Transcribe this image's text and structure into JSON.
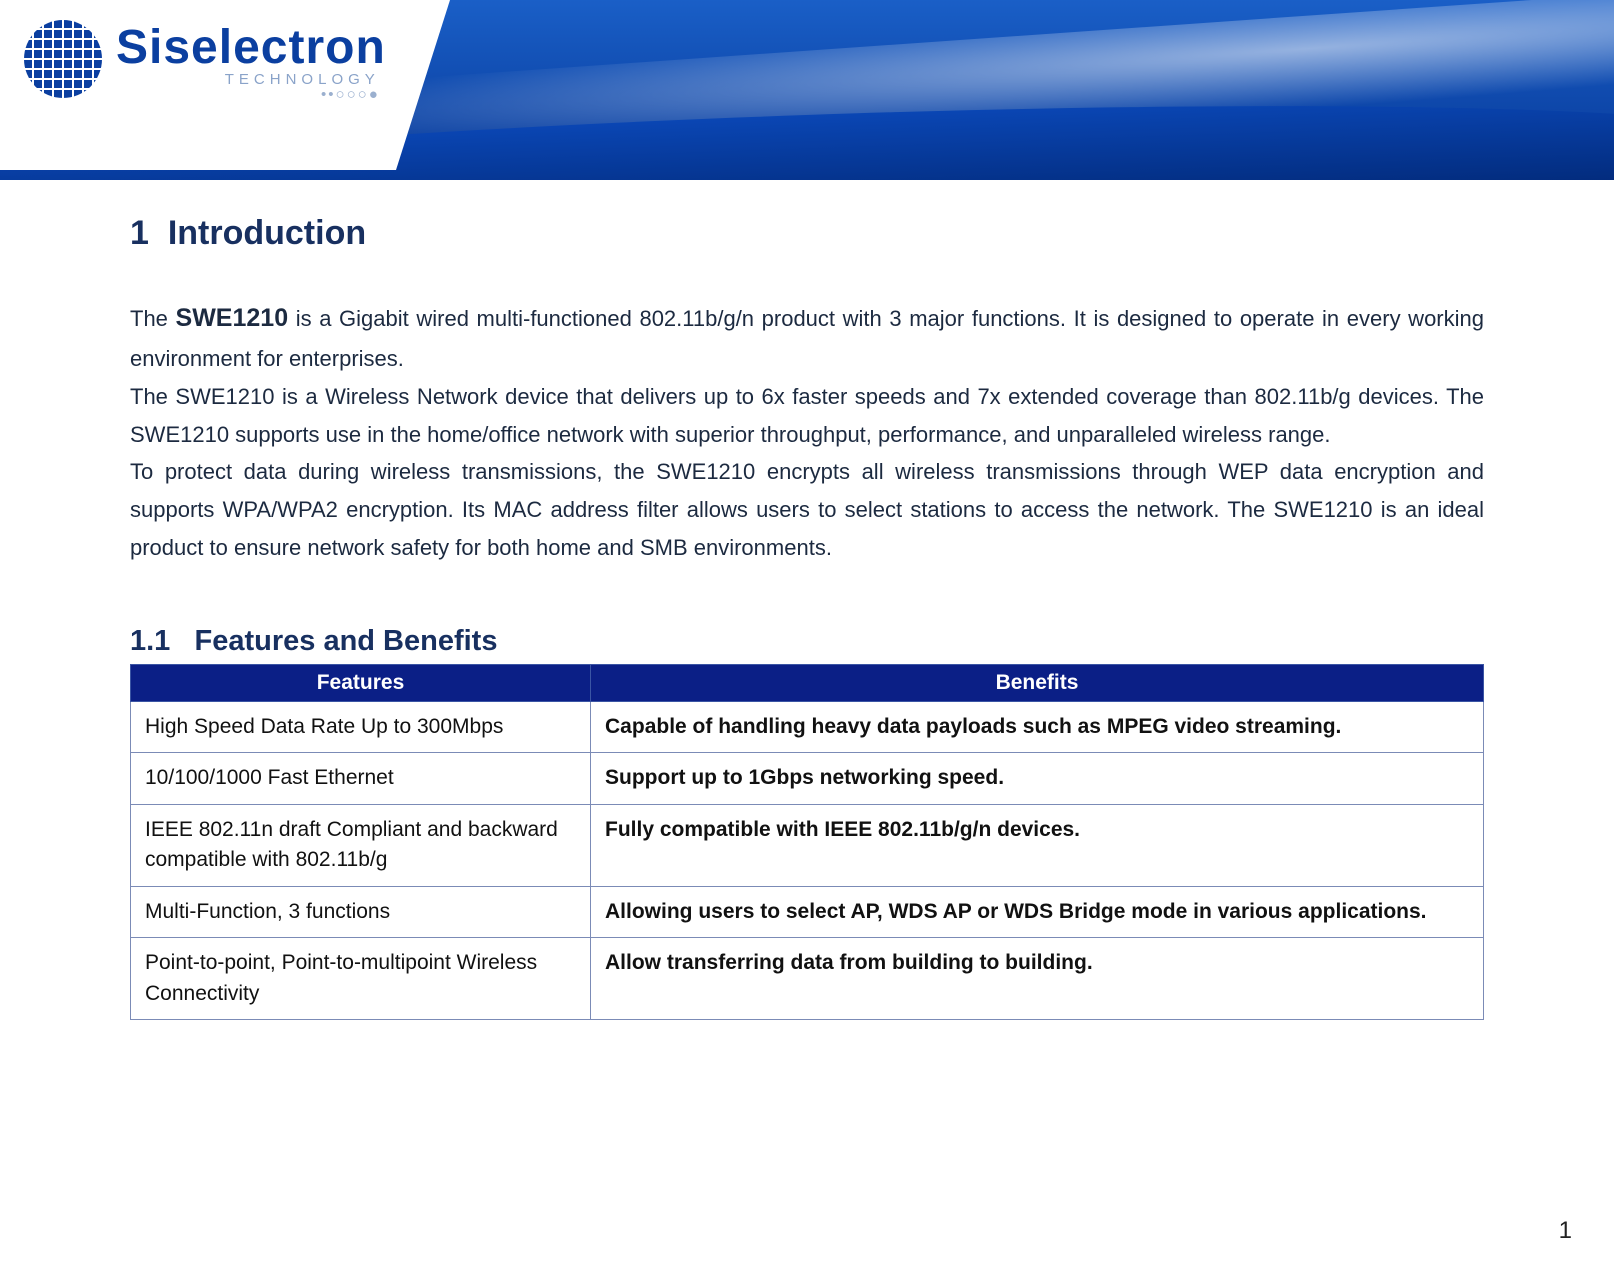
{
  "brand": {
    "name": "Siselectron",
    "subtitle": "TECHNOLOGY",
    "dots": "••○○○●"
  },
  "colors": {
    "brand_blue": "#0b3fa0",
    "heading_color": "#183060",
    "table_header_bg": "#0b1f86",
    "table_border": "#7b8bb6",
    "body_text": "#1c2a40"
  },
  "section": {
    "number": "1",
    "title": "Introduction"
  },
  "product_name": "SWE1210",
  "paragraphs": {
    "p1_lead": "The ",
    "p1_rest": " is a Gigabit wired multi-functioned 802.11b/g/n product with 3 major functions. It is designed to operate in every working environment for enterprises.",
    "p2": "The SWE1210 is a Wireless Network device that delivers up to 6x faster speeds and 7x extended coverage than 802.11b/g devices. The SWE1210 supports use in the home/office network with superior throughput, performance, and unparalleled wireless range.",
    "p3": "To protect data during wireless transmissions, the SWE1210 encrypts all wireless transmissions through WEP data encryption and supports WPA/WPA2 encryption. Its MAC address filter allows users to select stations to access the network. The SWE1210 is an ideal product to ensure network safety for both home and SMB environments."
  },
  "subsection": {
    "number": "1.1",
    "title": "Features and Benefits"
  },
  "table": {
    "headers": {
      "features": "Features",
      "benefits": "Benefits"
    },
    "rows": [
      {
        "feature": "High Speed Data Rate Up to 300Mbps",
        "benefit": "Capable of handling heavy data payloads such as MPEG video streaming."
      },
      {
        "feature": "10/100/1000 Fast Ethernet",
        "benefit": "Support up to 1Gbps networking speed."
      },
      {
        "feature": "IEEE 802.11n draft Compliant and backward compatible with 802.11b/g",
        "benefit": "Fully compatible with IEEE 802.11b/g/n devices."
      },
      {
        "feature": "Multi-Function, 3 functions",
        "benefit": "Allowing users to select AP, WDS AP or WDS Bridge mode in various applications."
      },
      {
        "feature": "Point-to-point, Point-to-multipoint Wireless Connectivity",
        "benefit": "Allow transferring data from building to building."
      }
    ]
  },
  "page_number": "1"
}
